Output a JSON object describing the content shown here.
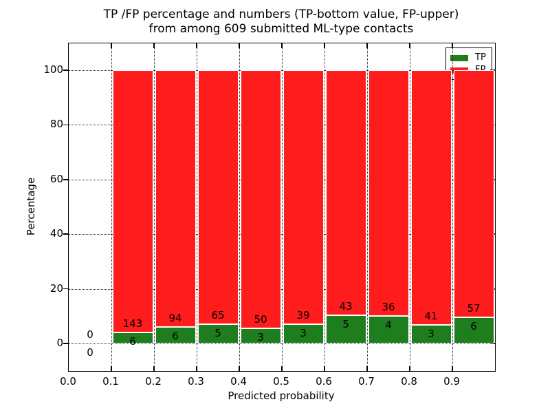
{
  "title": {
    "line1": "TP /FP percentage and numbers (TP-bottom value, FP-upper)",
    "line2": "from among 609 submitted ML-type contacts"
  },
  "axes": {
    "xlabel": "Predicted probability",
    "ylabel": "Percentage",
    "x_tick_labels": [
      "0.0",
      "0.1",
      "0.2",
      "0.3",
      "0.4",
      "0.5",
      "0.6",
      "0.7",
      "0.8",
      "0.9"
    ],
    "y_tick_labels": [
      "0",
      "20",
      "40",
      "60",
      "80",
      "100"
    ]
  },
  "legend": {
    "position": "upper right",
    "entries": [
      {
        "label": "TP",
        "color": "#1e7e1e"
      },
      {
        "label": "FP",
        "color": "#fe1c1c"
      }
    ]
  },
  "chart_data": {
    "type": "bar",
    "stacked": true,
    "normalized_to_percent": true,
    "title": "TP /FP percentage and numbers (TP-bottom value, FP-upper) from among 609 submitted ML-type contacts",
    "xlabel": "Predicted probability",
    "ylabel": "Percentage",
    "xlim": [
      0.0,
      1.0
    ],
    "ylim": [
      -10,
      110
    ],
    "y_ticks": [
      0,
      20,
      40,
      60,
      80,
      100
    ],
    "x_ticks": [
      0.0,
      0.1,
      0.2,
      0.3,
      0.4,
      0.5,
      0.6,
      0.7,
      0.8,
      0.9
    ],
    "grid": "dotted",
    "total_contacts": 609,
    "bin_width": 0.1,
    "series_colors": {
      "tp": "#1e7e1e",
      "fp": "#fe1c1c"
    },
    "bins": [
      {
        "x_start": 0.0,
        "x_end": 0.1,
        "tp": 0,
        "fp": 0
      },
      {
        "x_start": 0.1,
        "x_end": 0.2,
        "tp": 6,
        "fp": 143
      },
      {
        "x_start": 0.2,
        "x_end": 0.3,
        "tp": 6,
        "fp": 94
      },
      {
        "x_start": 0.3,
        "x_end": 0.4,
        "tp": 5,
        "fp": 65
      },
      {
        "x_start": 0.4,
        "x_end": 0.5,
        "tp": 3,
        "fp": 50
      },
      {
        "x_start": 0.5,
        "x_end": 0.6,
        "tp": 3,
        "fp": 39
      },
      {
        "x_start": 0.6,
        "x_end": 0.7,
        "tp": 5,
        "fp": 43
      },
      {
        "x_start": 0.7,
        "x_end": 0.8,
        "tp": 4,
        "fp": 36
      },
      {
        "x_start": 0.8,
        "x_end": 0.9,
        "tp": 3,
        "fp": 41
      },
      {
        "x_start": 0.9,
        "x_end": 1.0,
        "tp": 6,
        "fp": 57
      }
    ]
  }
}
